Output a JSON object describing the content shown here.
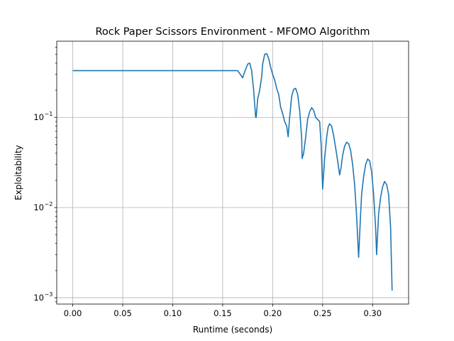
{
  "chart_data": {
    "type": "line",
    "title": "Rock Paper Scissors Environment - MFOMO Algorithm",
    "xlabel": "Runtime (seconds)",
    "ylabel": "Exploitability",
    "xlim": [
      -0.016,
      0.336
    ],
    "ylim": [
      0.00085,
      0.7
    ],
    "yscale": "log",
    "grid": true,
    "x_ticks": [
      0.0,
      0.05,
      0.1,
      0.15,
      0.2,
      0.25,
      0.3
    ],
    "x_tick_labels": [
      "0.00",
      "0.05",
      "0.10",
      "0.15",
      "0.20",
      "0.25",
      "0.30"
    ],
    "y_ticks": [
      {
        "value": 0.1,
        "base": "10",
        "exp": "−1"
      },
      {
        "value": 0.01,
        "base": "10",
        "exp": "−2"
      },
      {
        "value": 0.001,
        "base": "10",
        "exp": "−3"
      }
    ],
    "colors": {
      "series": "#1f77b4"
    },
    "series": [
      {
        "x": [
          0,
          0.165,
          0.17,
          0.172,
          0.175,
          0.177,
          0.179,
          0.181,
          0.182,
          0.183,
          0.1835,
          0.185,
          0.187,
          0.189,
          0.19,
          0.192,
          0.194,
          0.196,
          0.198,
          0.2,
          0.202,
          0.204,
          0.206,
          0.208,
          0.21,
          0.212,
          0.214,
          0.2155,
          0.217,
          0.219,
          0.221,
          0.223,
          0.225,
          0.227,
          0.229,
          0.2295,
          0.231,
          0.233,
          0.235,
          0.237,
          0.239,
          0.241,
          0.243,
          0.245,
          0.247,
          0.2485,
          0.25,
          0.252,
          0.254,
          0.2555,
          0.257,
          0.259,
          0.261,
          0.263,
          0.265,
          0.267,
          0.2685,
          0.27,
          0.272,
          0.274,
          0.276,
          0.278,
          0.28,
          0.282,
          0.284,
          0.286,
          0.2875,
          0.289,
          0.291,
          0.293,
          0.295,
          0.297,
          0.299,
          0.301,
          0.303,
          0.304,
          0.306,
          0.308,
          0.31,
          0.312,
          0.314,
          0.316,
          0.318,
          0.3195
        ],
        "values": [
          0.33,
          0.33,
          0.275,
          0.32,
          0.39,
          0.4,
          0.33,
          0.2,
          0.14,
          0.1,
          0.1,
          0.16,
          0.2,
          0.28,
          0.39,
          0.5,
          0.51,
          0.45,
          0.36,
          0.3,
          0.26,
          0.21,
          0.18,
          0.13,
          0.11,
          0.09,
          0.08,
          0.061,
          0.1,
          0.17,
          0.205,
          0.21,
          0.18,
          0.12,
          0.06,
          0.035,
          0.04,
          0.06,
          0.095,
          0.115,
          0.128,
          0.12,
          0.1,
          0.095,
          0.09,
          0.05,
          0.016,
          0.035,
          0.06,
          0.078,
          0.085,
          0.08,
          0.063,
          0.046,
          0.033,
          0.023,
          0.028,
          0.038,
          0.048,
          0.053,
          0.051,
          0.043,
          0.03,
          0.018,
          0.008,
          0.0028,
          0.0065,
          0.014,
          0.022,
          0.03,
          0.0345,
          0.033,
          0.025,
          0.014,
          0.006,
          0.003,
          0.0085,
          0.013,
          0.017,
          0.0195,
          0.018,
          0.014,
          0.006,
          0.0012
        ]
      }
    ]
  }
}
